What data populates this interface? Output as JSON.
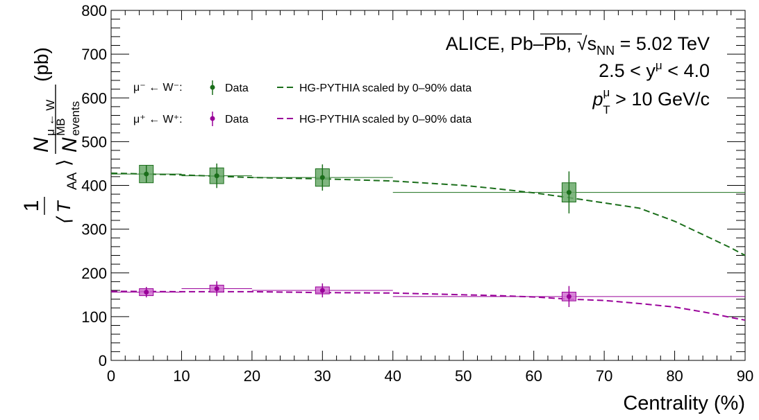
{
  "chart_data": {
    "type": "scatter",
    "xlabel": "Centrality (%)",
    "ylabel": {
      "prefix": "1",
      "taa": "⟨ T",
      "taa_sub": "AA",
      "taa_close": "⟩",
      "num": "N",
      "num_sub": "μ ← W",
      "den": "N",
      "den_sup": "MB",
      "den_sub": "events",
      "unit": "(pb)"
    },
    "xlim": [
      0,
      90
    ],
    "ylim": [
      0,
      800
    ],
    "x_ticks": [
      0,
      10,
      20,
      30,
      40,
      50,
      60,
      70,
      80,
      90
    ],
    "y_ticks": [
      0,
      100,
      200,
      300,
      400,
      500,
      600,
      700,
      800
    ],
    "annotations": {
      "line1": "ALICE, Pb–Pb, √s",
      "line1_sub": "NN",
      "line1_end": " = 5.02 TeV",
      "line2": "2.5 < y",
      "line2_sup": "μ",
      "line2_end": " < 4.0",
      "line3": "p",
      "line3_sup": "μ",
      "line3_sub": "T",
      "line3_end": " > 10 GeV/c"
    },
    "legend": [
      {
        "label": "μ⁻ ← W⁻:",
        "data_label": "Data",
        "model_label": "HG-PYTHIA scaled by 0–90% data",
        "color": "#1a6e1a"
      },
      {
        "label": "μ⁺ ← W⁺:",
        "data_label": "Data",
        "model_label": "HG-PYTHIA scaled by 0–90% data",
        "color": "#990099"
      }
    ],
    "series": [
      {
        "name": "μ⁻ ← W⁻ Data",
        "color": "#1a6e1a",
        "box_fill": "#6aa96a",
        "points": [
          {
            "x": 5,
            "xlo": 0,
            "xhi": 10,
            "y": 426,
            "stat": 20,
            "syst": 20
          },
          {
            "x": 15,
            "xlo": 10,
            "xhi": 20,
            "y": 422,
            "stat": 28,
            "syst": 18
          },
          {
            "x": 30,
            "xlo": 20,
            "xhi": 40,
            "y": 418,
            "stat": 30,
            "syst": 20
          },
          {
            "x": 65,
            "xlo": 40,
            "xhi": 90,
            "y": 384,
            "stat": 48,
            "syst": 22
          }
        ],
        "model": {
          "x": [
            0,
            10,
            20,
            30,
            40,
            50,
            55,
            60,
            65,
            70,
            75,
            80,
            85,
            88,
            90
          ],
          "y": [
            428,
            424,
            418,
            415,
            410,
            400,
            392,
            383,
            372,
            360,
            348,
            318,
            280,
            257,
            240
          ]
        }
      },
      {
        "name": "μ⁺ ← W⁺ Data",
        "color": "#990099",
        "box_fill": "#d070d0",
        "points": [
          {
            "x": 5,
            "xlo": 0,
            "xhi": 10,
            "y": 156,
            "stat": 12,
            "syst": 8
          },
          {
            "x": 15,
            "xlo": 10,
            "xhi": 20,
            "y": 164,
            "stat": 17,
            "syst": 8
          },
          {
            "x": 30,
            "xlo": 20,
            "xhi": 40,
            "y": 160,
            "stat": 16,
            "syst": 8
          },
          {
            "x": 65,
            "xlo": 40,
            "xhi": 90,
            "y": 146,
            "stat": 24,
            "syst": 10
          }
        ],
        "model": {
          "x": [
            0,
            10,
            20,
            30,
            40,
            50,
            55,
            60,
            65,
            70,
            75,
            80,
            85,
            88,
            90
          ],
          "y": [
            158,
            157,
            157,
            155,
            154,
            150,
            148,
            145,
            140,
            137,
            130,
            122,
            108,
            98,
            92
          ]
        }
      }
    ]
  }
}
